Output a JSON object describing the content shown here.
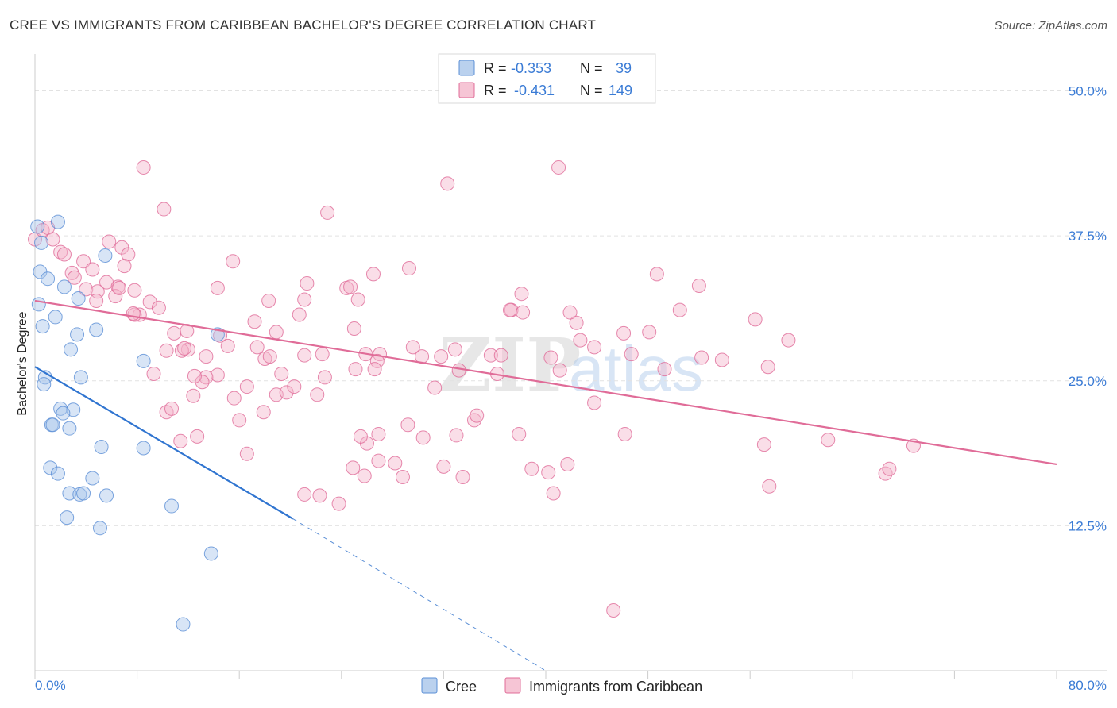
{
  "header": {
    "title": "CREE VS IMMIGRANTS FROM CARIBBEAN BACHELOR'S DEGREE CORRELATION CHART",
    "source": "Source: ZipAtlas.com"
  },
  "watermark": {
    "zip": "ZIP",
    "atlas": "atlas"
  },
  "colors": {
    "cree": "#5b8fd6",
    "cree_fill": "#a9c6ea",
    "caribbean": "#e06c98",
    "caribbean_fill": "#f4b6cb",
    "tick": "#3a7bd5",
    "grid": "#e2e2e2"
  },
  "legend": {
    "rows": [
      {
        "r_label": "R =",
        "r_value": "-0.353",
        "n_label": "N =",
        "n_value": "39"
      },
      {
        "r_label": "R =",
        "r_value": "-0.431",
        "n_label": "N =",
        "n_value": "149"
      }
    ]
  },
  "bottom_legend": {
    "cree": "Cree",
    "caribbean": "Immigrants from Caribbean"
  },
  "chart_data": {
    "type": "scatter",
    "title": "CREE VS IMMIGRANTS FROM CARIBBEAN BACHELOR'S DEGREE CORRELATION CHART",
    "xlabel": "",
    "ylabel": "Bachelor's Degree",
    "xlim": [
      0,
      80
    ],
    "ylim": [
      0,
      52.5
    ],
    "x_tick_labels": [
      "0.0%",
      "80.0%"
    ],
    "y_ticks": [
      12.5,
      25.0,
      37.5,
      50.0
    ],
    "y_tick_labels": [
      "12.5%",
      "25.0%",
      "37.5%",
      "50.0%"
    ],
    "grid": true,
    "series": [
      {
        "name": "Cree",
        "r": -0.353,
        "n": 39,
        "trend": {
          "x0": 0,
          "y0": 26.2,
          "x1": 20.2,
          "y1": 13.1,
          "dash_to_x": 40,
          "dash_to_y": 0
        },
        "points": [
          [
            0.2,
            38.3
          ],
          [
            0.5,
            36.9
          ],
          [
            0.4,
            34.4
          ],
          [
            1.0,
            33.8
          ],
          [
            1.8,
            38.7
          ],
          [
            0.3,
            31.6
          ],
          [
            0.6,
            29.7
          ],
          [
            1.6,
            30.5
          ],
          [
            2.3,
            33.1
          ],
          [
            3.4,
            32.1
          ],
          [
            5.5,
            35.8
          ],
          [
            4.8,
            29.4
          ],
          [
            3.3,
            29.0
          ],
          [
            2.8,
            27.7
          ],
          [
            8.5,
            26.7
          ],
          [
            14.3,
            29.0
          ],
          [
            0.8,
            25.3
          ],
          [
            0.7,
            24.7
          ],
          [
            3.6,
            25.3
          ],
          [
            2.0,
            22.6
          ],
          [
            3.0,
            22.5
          ],
          [
            2.2,
            22.2
          ],
          [
            1.3,
            21.2
          ],
          [
            1.4,
            21.2
          ],
          [
            2.7,
            20.9
          ],
          [
            5.2,
            19.3
          ],
          [
            8.5,
            19.2
          ],
          [
            1.2,
            17.5
          ],
          [
            1.8,
            17.0
          ],
          [
            4.5,
            16.6
          ],
          [
            2.7,
            15.3
          ],
          [
            3.5,
            15.2
          ],
          [
            3.8,
            15.3
          ],
          [
            5.6,
            15.1
          ],
          [
            2.5,
            13.2
          ],
          [
            10.7,
            14.2
          ],
          [
            5.1,
            12.3
          ],
          [
            13.8,
            10.1
          ],
          [
            11.6,
            4.0
          ]
        ]
      },
      {
        "name": "Immigrants from Caribbean",
        "r": -0.431,
        "n": 149,
        "trend": {
          "x0": 0,
          "y0": 31.9,
          "x1": 80,
          "y1": 17.8
        },
        "points": [
          [
            0.0,
            37.2
          ],
          [
            0.6,
            38.0
          ],
          [
            1.0,
            38.2
          ],
          [
            1.4,
            37.2
          ],
          [
            2.0,
            36.1
          ],
          [
            2.3,
            35.9
          ],
          [
            3.8,
            35.3
          ],
          [
            5.8,
            37.0
          ],
          [
            6.8,
            36.5
          ],
          [
            7.3,
            35.9
          ],
          [
            8.5,
            43.4
          ],
          [
            10.1,
            39.8
          ],
          [
            22.9,
            39.5
          ],
          [
            32.3,
            42.0
          ],
          [
            41.0,
            43.4
          ],
          [
            7.0,
            34.9
          ],
          [
            4.5,
            34.6
          ],
          [
            2.9,
            34.3
          ],
          [
            3.1,
            33.9
          ],
          [
            5.6,
            33.5
          ],
          [
            6.5,
            33.1
          ],
          [
            4.0,
            32.9
          ],
          [
            4.9,
            32.7
          ],
          [
            7.8,
            32.8
          ],
          [
            6.3,
            32.3
          ],
          [
            9.0,
            31.8
          ],
          [
            4.8,
            31.9
          ],
          [
            9.7,
            31.3
          ],
          [
            8.2,
            30.7
          ],
          [
            10.9,
            29.1
          ],
          [
            11.9,
            29.3
          ],
          [
            14.5,
            28.9
          ],
          [
            15.5,
            35.3
          ],
          [
            14.3,
            33.0
          ],
          [
            12.0,
            27.7
          ],
          [
            11.5,
            27.6
          ],
          [
            15.1,
            28.0
          ],
          [
            17.4,
            27.9
          ],
          [
            18.9,
            29.2
          ],
          [
            17.2,
            30.1
          ],
          [
            18.3,
            31.9
          ],
          [
            21.1,
            32.0
          ],
          [
            20.7,
            30.7
          ],
          [
            21.3,
            33.4
          ],
          [
            24.4,
            33.0
          ],
          [
            24.7,
            33.1
          ],
          [
            25.3,
            32.0
          ],
          [
            25.0,
            29.5
          ],
          [
            26.5,
            34.2
          ],
          [
            29.3,
            34.7
          ],
          [
            27.0,
            27.3
          ],
          [
            26.8,
            26.7
          ],
          [
            26.6,
            26.0
          ],
          [
            25.1,
            26.0
          ],
          [
            22.7,
            25.3
          ],
          [
            21.1,
            27.2
          ],
          [
            22.5,
            27.3
          ],
          [
            18.0,
            26.9
          ],
          [
            18.4,
            27.1
          ],
          [
            16.6,
            24.5
          ],
          [
            15.6,
            23.5
          ],
          [
            16.0,
            21.6
          ],
          [
            17.9,
            22.3
          ],
          [
            18.9,
            23.8
          ],
          [
            19.7,
            24.0
          ],
          [
            20.3,
            24.5
          ],
          [
            22.1,
            23.8
          ],
          [
            19.3,
            25.6
          ],
          [
            14.3,
            25.5
          ],
          [
            13.4,
            25.3
          ],
          [
            13.1,
            24.9
          ],
          [
            12.4,
            23.7
          ],
          [
            9.3,
            25.6
          ],
          [
            10.3,
            22.3
          ],
          [
            10.7,
            22.6
          ],
          [
            11.4,
            19.8
          ],
          [
            12.7,
            20.2
          ],
          [
            16.6,
            18.7
          ],
          [
            29.6,
            27.9
          ],
          [
            31.8,
            27.1
          ],
          [
            33.2,
            25.9
          ],
          [
            32.9,
            27.7
          ],
          [
            35.7,
            27.2
          ],
          [
            36.2,
            25.6
          ],
          [
            33.0,
            20.3
          ],
          [
            32.0,
            17.6
          ],
          [
            33.5,
            16.7
          ],
          [
            34.4,
            21.6
          ],
          [
            34.6,
            22.0
          ],
          [
            29.2,
            21.2
          ],
          [
            28.2,
            17.9
          ],
          [
            26.9,
            18.1
          ],
          [
            26.0,
            19.6
          ],
          [
            26.9,
            20.4
          ],
          [
            25.8,
            16.8
          ],
          [
            24.9,
            17.5
          ],
          [
            28.8,
            16.7
          ],
          [
            30.4,
            20.1
          ],
          [
            25.5,
            20.2
          ],
          [
            23.8,
            14.4
          ],
          [
            22.3,
            15.1
          ],
          [
            21.1,
            15.2
          ],
          [
            38.1,
            32.5
          ],
          [
            37.3,
            31.1
          ],
          [
            37.2,
            31.1
          ],
          [
            38.2,
            30.9
          ],
          [
            40.4,
            27.0
          ],
          [
            42.4,
            30.0
          ],
          [
            41.9,
            30.9
          ],
          [
            42.7,
            28.5
          ],
          [
            43.8,
            27.9
          ],
          [
            41.1,
            25.9
          ],
          [
            46.1,
            29.1
          ],
          [
            46.7,
            27.3
          ],
          [
            48.1,
            29.2
          ],
          [
            49.3,
            26.0
          ],
          [
            48.7,
            34.2
          ],
          [
            50.5,
            31.1
          ],
          [
            52.0,
            33.2
          ],
          [
            52.2,
            27.0
          ],
          [
            53.8,
            26.8
          ],
          [
            56.4,
            30.3
          ],
          [
            57.4,
            26.2
          ],
          [
            59.0,
            28.5
          ],
          [
            43.8,
            23.1
          ],
          [
            46.2,
            20.4
          ],
          [
            37.9,
            20.4
          ],
          [
            36.5,
            27.2
          ],
          [
            38.9,
            17.4
          ],
          [
            40.2,
            17.1
          ],
          [
            40.6,
            15.3
          ],
          [
            41.7,
            17.8
          ],
          [
            57.1,
            19.5
          ],
          [
            57.5,
            15.9
          ],
          [
            62.1,
            19.9
          ],
          [
            66.6,
            17.0
          ],
          [
            66.9,
            17.4
          ],
          [
            68.8,
            19.4
          ],
          [
            45.3,
            5.2
          ],
          [
            11.7,
            27.8
          ],
          [
            13.4,
            27.1
          ],
          [
            12.5,
            25.4
          ],
          [
            7.8,
            30.7
          ],
          [
            7.7,
            30.8
          ],
          [
            6.6,
            33.0
          ],
          [
            10.3,
            27.6
          ],
          [
            30.3,
            27.1
          ],
          [
            31.3,
            24.4
          ],
          [
            25.9,
            27.3
          ]
        ]
      }
    ]
  }
}
